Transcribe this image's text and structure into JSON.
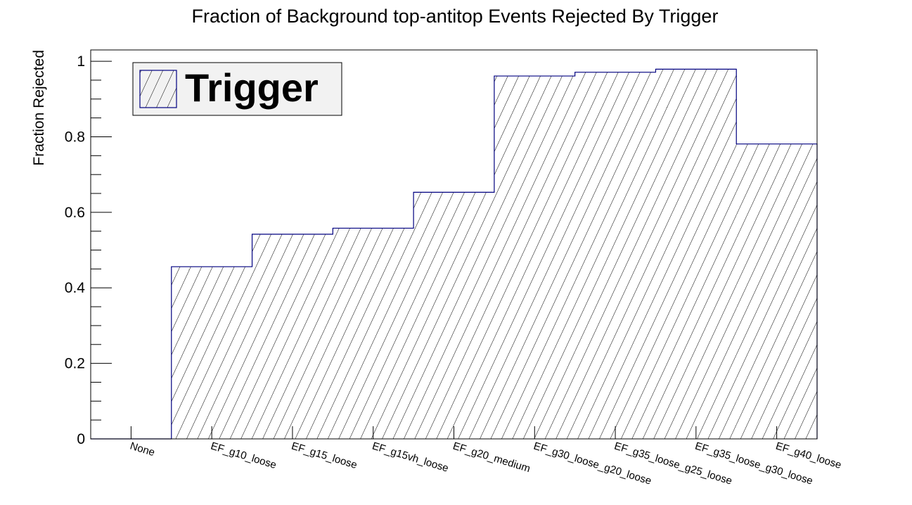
{
  "chart_data": {
    "type": "bar",
    "title": "Fraction of Background top-antitop Events Rejected By Trigger",
    "xlabel": "",
    "ylabel": "Fraction Rejected",
    "ylim": [
      0,
      1.03
    ],
    "yticks": [
      0,
      0.2,
      0.4,
      0.6,
      0.8,
      1
    ],
    "ytick_labels": [
      "0",
      "0.2",
      "0.4",
      "0.6",
      "0.8",
      "1"
    ],
    "categories": [
      "None",
      "EF_g10_loose",
      "EF_g15_loose",
      "EF_g15vh_loose",
      "EF_g20_medium",
      "EF_g30_loose_g20_loose",
      "EF_g35_loose_g25_loose",
      "EF_g35_loose_g30_loose",
      "EF_g40_loose"
    ],
    "series": [
      {
        "name": "Trigger",
        "values": [
          0,
          0.456,
          0.542,
          0.558,
          0.653,
          0.961,
          0.971,
          0.979,
          0.781
        ]
      }
    ],
    "style": "step-histogram with diagonal hatch fill",
    "grid": false,
    "legend": {
      "position": "top-left",
      "entries": [
        "Trigger"
      ]
    },
    "colors": {
      "outline": "#000080",
      "hatch": "#000000",
      "legend_bg": "#f2f2f2"
    }
  }
}
